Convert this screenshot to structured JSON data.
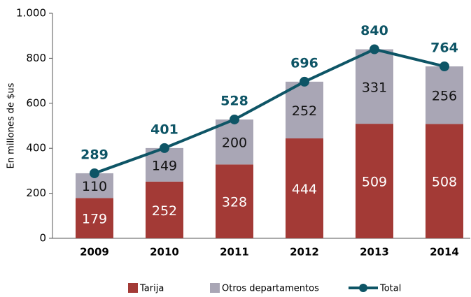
{
  "chart_data": {
    "type": "bar",
    "stacked": true,
    "y_label": "En millones de $us",
    "categories": [
      "2009",
      "2010",
      "2011",
      "2012",
      "2013",
      "2014"
    ],
    "series": [
      {
        "name": "Tarija",
        "type": "bar",
        "color": "#a33a36",
        "values": [
          179,
          252,
          328,
          444,
          509,
          508
        ]
      },
      {
        "name": "Otros departamentos",
        "type": "bar",
        "color": "#a9a6b5",
        "values": [
          110,
          149,
          200,
          252,
          331,
          256
        ]
      },
      {
        "name": "Total",
        "type": "line",
        "color": "#0e5566",
        "values": [
          289,
          401,
          528,
          696,
          840,
          764
        ]
      }
    ],
    "ylim": [
      0,
      1000
    ],
    "yticks": [
      0,
      200,
      400,
      600,
      800,
      {
        "value": 1000,
        "label": "1.000"
      }
    ],
    "grid": false,
    "legend": "bottom"
  }
}
